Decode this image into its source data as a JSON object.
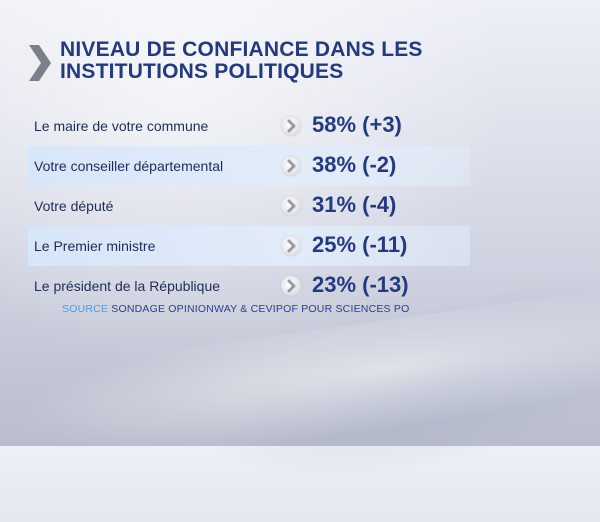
{
  "title": {
    "line1": "NIVEAU DE CONFIANCE DANS LES",
    "line2": "INSTITUTIONS POLITIQUES"
  },
  "rows": [
    {
      "label": "Le maire de votre commune",
      "value": "58% (+3)"
    },
    {
      "label": "Votre conseiller départemental",
      "value": "38% (-2)"
    },
    {
      "label": "Votre député",
      "value": "31% (-4)"
    },
    {
      "label": "Le Premier ministre",
      "value": "25% (-11)"
    },
    {
      "label": "Le président de la République",
      "value": "23% (-13)"
    }
  ],
  "source": {
    "label": "SOURCE",
    "text": "SONDAGE OPINIONWAY & CEVIPOF POUR SCIENCES PO"
  },
  "colors": {
    "title": "#233a80",
    "source_label": "#4a9be0"
  }
}
